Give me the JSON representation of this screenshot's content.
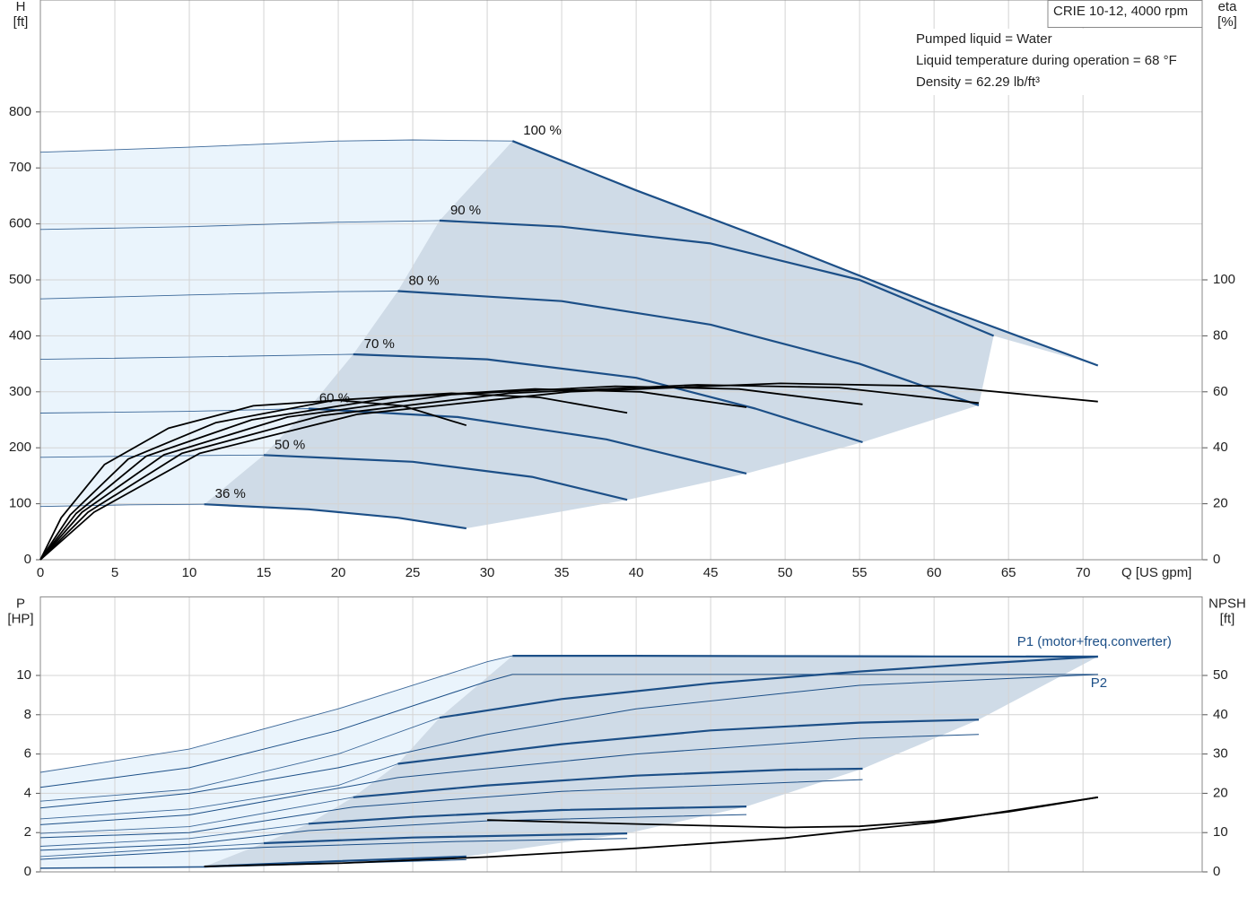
{
  "chart_data": [
    {
      "type": "line",
      "title": "CRIE 10-12, 4000 rpm",
      "notes": [
        "Pumped liquid = Water",
        "Liquid temperature during operation = 68 °F",
        "Density = 62.29 lb/ft³"
      ],
      "x_label": "Q [US gpm]",
      "y_label": "H",
      "y_unit": "[ft]",
      "y2_label": "eta",
      "y2_unit": "[%]",
      "xlim": [
        0,
        78
      ],
      "xticks": [
        0,
        5,
        10,
        15,
        20,
        25,
        30,
        35,
        40,
        45,
        50,
        55,
        60,
        65,
        70
      ],
      "xtick_labels": true,
      "ylim": [
        0,
        1000
      ],
      "yticks": [
        0,
        100,
        200,
        300,
        400,
        500,
        600,
        700,
        800
      ],
      "y2lim": [
        0,
        200
      ],
      "y2ticks": [
        0,
        20,
        40,
        60,
        80,
        100
      ],
      "grid": true,
      "operating_fill": "#cfdbe7",
      "extension_fill": "#eaf4fc",
      "series": [
        {
          "name": "100 %",
          "color": "#1c4f87",
          "style": "thick",
          "label_at": "start",
          "x": [
            31.7,
            40,
            50,
            60,
            71
          ],
          "values": [
            748,
            660,
            560,
            455,
            347
          ],
          "extension": {
            "x": [
              0,
              10,
              20,
              25,
              31.7
            ],
            "values": [
              728,
              737,
              748,
              750,
              748
            ]
          }
        },
        {
          "name": "90 %",
          "color": "#1c4f87",
          "style": "thick",
          "label_at": "start",
          "x": [
            26.8,
            35,
            45,
            55,
            64
          ],
          "values": [
            606,
            595,
            565,
            500,
            400
          ],
          "extension": {
            "x": [
              0,
              10,
              20,
              26.8
            ],
            "values": [
              590,
              595,
              603,
              606
            ]
          }
        },
        {
          "name": "80 %",
          "color": "#1c4f87",
          "style": "thick",
          "label_at": "start",
          "x": [
            24,
            35,
            45,
            55,
            63
          ],
          "values": [
            480,
            462,
            420,
            350,
            276
          ],
          "extension": {
            "x": [
              0,
              10,
              20,
              24
            ],
            "values": [
              466,
              473,
              479,
              480
            ]
          }
        },
        {
          "name": "70 %",
          "color": "#1c4f87",
          "style": "thick",
          "label_at": "start",
          "x": [
            21,
            30,
            40,
            48,
            55.2
          ],
          "values": [
            367,
            358,
            325,
            270,
            210
          ],
          "extension": {
            "x": [
              0,
              10,
              21
            ],
            "values": [
              358,
              362,
              367
            ]
          }
        },
        {
          "name": "60 %",
          "color": "#1c4f87",
          "style": "thick",
          "label_at": "start",
          "x": [
            18,
            28,
            38,
            47.4
          ],
          "values": [
            270,
            255,
            215,
            154
          ],
          "extension": {
            "x": [
              0,
              10,
              18
            ],
            "values": [
              262,
              265,
              270
            ]
          }
        },
        {
          "name": "50 %",
          "color": "#1c4f87",
          "style": "thick",
          "label_at": "start",
          "x": [
            15,
            25,
            33,
            39.4
          ],
          "values": [
            187,
            175,
            148,
            107
          ],
          "extension": {
            "x": [
              0,
              10,
              15
            ],
            "values": [
              183,
              186,
              187
            ]
          }
        },
        {
          "name": "36 %",
          "color": "#1c4f87",
          "style": "thick",
          "label_at": "start",
          "x": [
            11,
            18,
            24,
            28.6
          ],
          "values": [
            99,
            90,
            75,
            56
          ],
          "extension": {
            "x": [
              0,
              6,
              11
            ],
            "values": [
              95,
              98,
              99
            ]
          }
        },
        {
          "color": "#000000",
          "style": "eta",
          "axis": "y2",
          "x": [
            0,
            3.6,
            10.7,
            21.3,
            35.5,
            49.7,
            60.4,
            71
          ],
          "values": [
            0,
            17,
            38,
            52,
            60,
            63,
            62,
            56.5
          ]
        },
        {
          "color": "#000000",
          "style": "eta",
          "axis": "y2",
          "x": [
            0,
            3.2,
            9.5,
            18.9,
            31.5,
            44.1,
            53.6,
            63
          ],
          "values": [
            0,
            17,
            38,
            51.5,
            59.5,
            62.5,
            61.5,
            56
          ]
        },
        {
          "color": "#000000",
          "style": "eta",
          "axis": "y2",
          "x": [
            0,
            2.8,
            8.3,
            16.6,
            27.6,
            38.6,
            46.9,
            55.2
          ],
          "values": [
            0,
            17,
            37.5,
            51,
            59,
            62,
            61,
            55.5
          ]
        },
        {
          "color": "#000000",
          "style": "eta",
          "axis": "y2",
          "x": [
            0,
            2.4,
            7.1,
            14.2,
            23.7,
            33.2,
            40.3,
            47.4
          ],
          "values": [
            0,
            16.5,
            37,
            50,
            58,
            61,
            60,
            54.5
          ]
        },
        {
          "color": "#000000",
          "style": "eta",
          "axis": "y2",
          "x": [
            0,
            2,
            5.9,
            11.8,
            19.7,
            27.6,
            33.5,
            39.4
          ],
          "values": [
            0,
            16,
            36,
            49,
            57,
            59.5,
            58,
            52.5
          ]
        },
        {
          "color": "#000000",
          "style": "eta",
          "axis": "y2",
          "x": [
            0,
            1.4,
            4.3,
            8.6,
            14.3,
            20,
            24.3,
            28.6
          ],
          "values": [
            0,
            15,
            34,
            47,
            55,
            57,
            55,
            48
          ]
        }
      ]
    },
    {
      "type": "line",
      "y_label": "P",
      "y_unit": "[HP]",
      "y2_label": "NPSH",
      "y2_unit": "[ft]",
      "xlim": [
        0,
        78
      ],
      "xticks": [
        0,
        5,
        10,
        15,
        20,
        25,
        30,
        35,
        40,
        45,
        50,
        55,
        60,
        65,
        70
      ],
      "xtick_labels": false,
      "ylim": [
        0,
        14
      ],
      "yticks": [
        0,
        2,
        4,
        6,
        8,
        10
      ],
      "y2lim": [
        0,
        70
      ],
      "y2ticks": [
        0,
        10,
        20,
        30,
        40,
        50
      ],
      "grid": true,
      "operating_fill": "#cfdbe7",
      "extension_fill": "#eaf4fc",
      "series": [
        {
          "name": "P1 (motor+freq.converter)",
          "color": "#1c4f87",
          "style": "thick",
          "label_at": "end-above",
          "x": [
            31.7,
            40,
            50,
            60,
            71
          ],
          "values": [
            11.0,
            11.0,
            10.98,
            10.97,
            10.96
          ],
          "extension": {
            "x": [
              0,
              10,
              20,
              30,
              31.7
            ],
            "values": [
              5.07,
              6.25,
              8.3,
              10.7,
              11.0
            ]
          }
        },
        {
          "color": "#1c4f87",
          "style": "thick",
          "x": [
            26.8,
            35,
            45,
            55,
            63,
            71
          ],
          "values": [
            7.85,
            8.8,
            9.6,
            10.2,
            10.6,
            10.96
          ],
          "extension": {
            "x": [
              0,
              10,
              20,
              26.8
            ],
            "values": [
              3.6,
              4.2,
              6.0,
              7.85
            ]
          }
        },
        {
          "color": "#1c4f87",
          "style": "thick",
          "x": [
            24,
            35,
            45,
            55,
            63
          ],
          "values": [
            5.5,
            6.5,
            7.2,
            7.6,
            7.75
          ],
          "extension": {
            "x": [
              0,
              10,
              20,
              24
            ],
            "values": [
              2.7,
              3.2,
              4.4,
              5.5
            ]
          }
        },
        {
          "color": "#1c4f87",
          "style": "thick",
          "x": [
            21,
            30,
            40,
            50,
            55.2
          ],
          "values": [
            3.8,
            4.4,
            4.9,
            5.2,
            5.25
          ],
          "extension": {
            "x": [
              0,
              10,
              21
            ],
            "values": [
              1.96,
              2.3,
              3.8
            ]
          }
        },
        {
          "color": "#1c4f87",
          "style": "thick",
          "x": [
            18,
            25,
            35,
            47.4
          ],
          "values": [
            2.45,
            2.8,
            3.15,
            3.33
          ],
          "extension": {
            "x": [
              0,
              10,
              18
            ],
            "values": [
              1.3,
              1.7,
              2.45
            ]
          }
        },
        {
          "color": "#1c4f87",
          "style": "thick",
          "x": [
            15,
            25,
            39.4
          ],
          "values": [
            1.46,
            1.75,
            1.96
          ],
          "extension": {
            "x": [
              0,
              15
            ],
            "values": [
              0.78,
              1.46
            ]
          }
        },
        {
          "color": "#1c4f87",
          "style": "thick",
          "x": [
            11,
            20,
            28.6
          ],
          "values": [
            0.27,
            0.55,
            0.78
          ],
          "extension": {
            "x": [
              0,
              11
            ],
            "values": [
              0.2,
              0.27
            ]
          }
        },
        {
          "name": "P2",
          "color": "#1c4f87",
          "style": "thin",
          "label_at": "end-below",
          "x": [
            0,
            10,
            20,
            30,
            31.7,
            50,
            71
          ],
          "values": [
            4.3,
            5.3,
            7.2,
            9.7,
            10.05,
            10.05,
            10.05
          ]
        },
        {
          "color": "#1c4f87",
          "style": "thin",
          "x": [
            0,
            10,
            20,
            30,
            40,
            55,
            71
          ],
          "values": [
            3.25,
            4.0,
            5.3,
            7.0,
            8.3,
            9.5,
            10.05
          ]
        },
        {
          "color": "#1c4f87",
          "style": "thin",
          "x": [
            0,
            10,
            24,
            40,
            55,
            63
          ],
          "values": [
            2.4,
            2.9,
            4.8,
            6.0,
            6.8,
            7.0
          ]
        },
        {
          "color": "#1c4f87",
          "style": "thin",
          "x": [
            0,
            10,
            21,
            35,
            55.2
          ],
          "values": [
            1.74,
            2.0,
            3.3,
            4.1,
            4.7
          ]
        },
        {
          "color": "#1c4f87",
          "style": "thin",
          "x": [
            0,
            10,
            18,
            30,
            47.4
          ],
          "values": [
            1.1,
            1.4,
            2.1,
            2.6,
            2.92
          ]
        },
        {
          "color": "#1c4f87",
          "style": "thin",
          "x": [
            0,
            15,
            28,
            39.4
          ],
          "values": [
            0.64,
            1.25,
            1.55,
            1.7
          ]
        },
        {
          "color": "#1c4f87",
          "style": "thin",
          "x": [
            0,
            11,
            28.6
          ],
          "values": [
            0.18,
            0.24,
            0.62
          ]
        },
        {
          "color": "#000000",
          "style": "eta",
          "axis": "y2",
          "x": [
            30,
            40,
            50,
            55,
            60,
            65,
            71
          ],
          "values": [
            13.2,
            12.2,
            11.3,
            11.6,
            13,
            15.3,
            19
          ]
        },
        {
          "color": "#000000",
          "style": "eta",
          "axis": "y2",
          "x": [
            11,
            20,
            30,
            40,
            50,
            60,
            71
          ],
          "values": [
            1.4,
            2.2,
            3.8,
            6,
            8.6,
            12.6,
            19
          ]
        }
      ]
    }
  ]
}
